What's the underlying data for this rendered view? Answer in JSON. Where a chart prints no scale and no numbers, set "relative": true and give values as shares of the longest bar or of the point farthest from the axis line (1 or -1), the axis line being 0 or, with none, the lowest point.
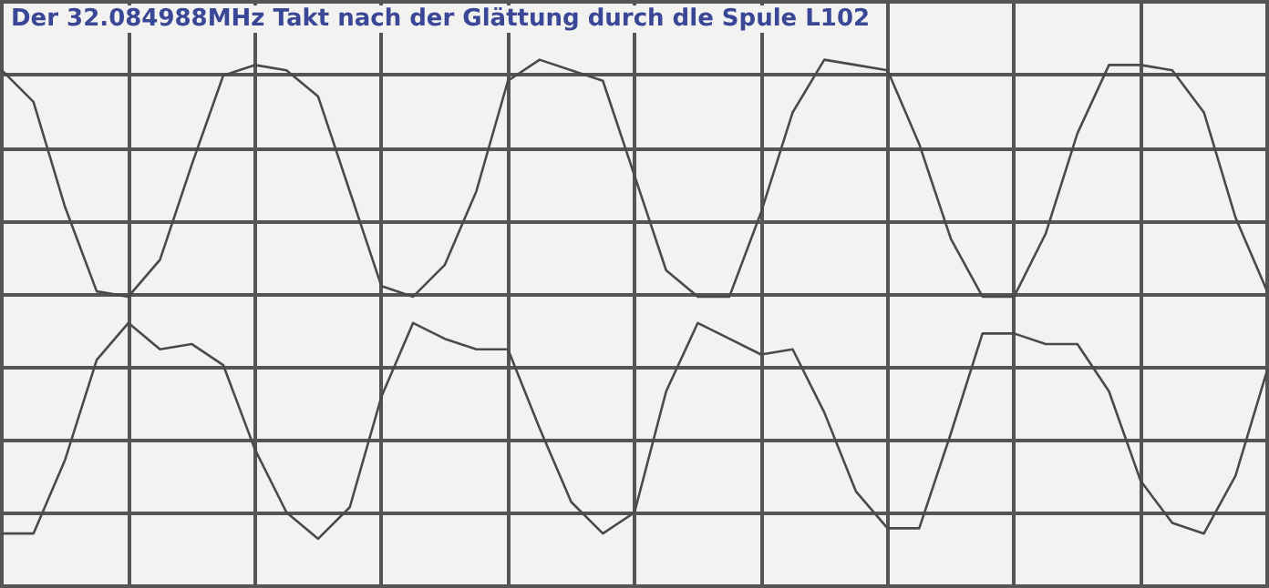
{
  "chart_data": {
    "type": "line",
    "title": "Der 32.084988MHz Takt nach der Glättung durch dle Spule L102",
    "categories": [
      null,
      null,
      null,
      null,
      null,
      null,
      null,
      null,
      null,
      null,
      null,
      null,
      null,
      null,
      null,
      null,
      null,
      null,
      null,
      null,
      null,
      null,
      null,
      null,
      null,
      null,
      null,
      null,
      null,
      null,
      null,
      null,
      null,
      null,
      null,
      null,
      null,
      null,
      null,
      null,
      null
    ],
    "series": [
      {
        "color": "#4a4a4a",
        "values": [
          0.98,
          0.92,
          0.72,
          0.56,
          0.55,
          0.62,
          0.8,
          0.97,
          0.99,
          0.98,
          0.93,
          0.75,
          0.57,
          0.55,
          0.61,
          0.75,
          0.96,
          1.0,
          0.98,
          0.96,
          0.78,
          0.6,
          0.55,
          0.55,
          0.71,
          0.9,
          1.0,
          0.99,
          0.98,
          0.84,
          0.66,
          0.55,
          0.55,
          0.67,
          0.86,
          0.99,
          0.99,
          0.98,
          0.9,
          0.7,
          0.56
        ]
      },
      {
        "color": "#4a4a4a",
        "values": [
          0.1,
          0.1,
          0.24,
          0.43,
          0.5,
          0.45,
          0.46,
          0.42,
          0.26,
          0.14,
          0.09,
          0.15,
          0.36,
          0.5,
          0.47,
          0.45,
          0.45,
          0.3,
          0.16,
          0.1,
          0.14,
          0.37,
          0.5,
          0.47,
          0.44,
          0.45,
          0.33,
          0.18,
          0.11,
          0.11,
          0.29,
          0.48,
          0.48,
          0.46,
          0.46,
          0.37,
          0.2,
          0.12,
          0.1,
          0.21,
          0.41
        ]
      }
    ],
    "relative": true,
    "grid": true,
    "marker": "none",
    "line_style": "solid"
  }
}
